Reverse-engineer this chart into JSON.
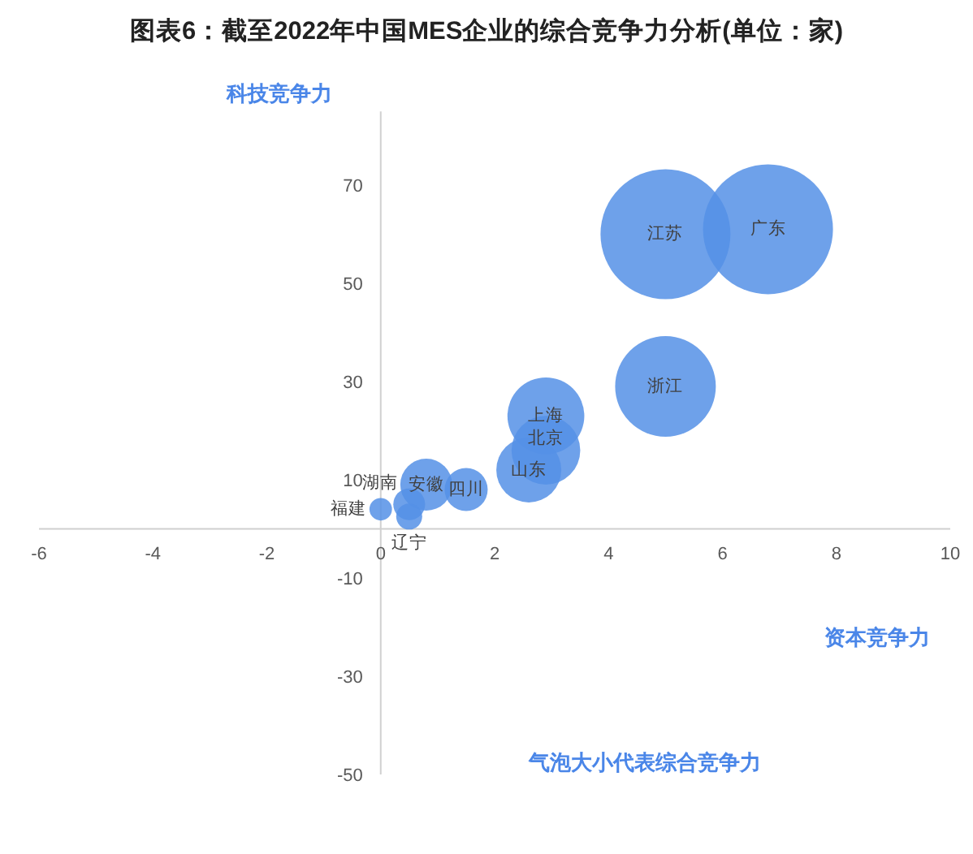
{
  "chart_data": {
    "type": "bubble",
    "title": "图表6：截至2022年中国MES企业的综合竞争力分析(单位：家)",
    "xlabel": "资本竞争力",
    "ylabel": "科技竞争力",
    "annotations": [
      "气泡大小代表综合竞争力"
    ],
    "xlim": [
      -6,
      10
    ],
    "xticks": [
      -6,
      -4,
      -2,
      0,
      2,
      4,
      6,
      8,
      10
    ],
    "ylim": [
      -50,
      85
    ],
    "yticks": [
      -50,
      -30,
      -10,
      10,
      30,
      50,
      70
    ],
    "series": [
      {
        "name": "江苏",
        "color": "#5591e6",
        "x": [
          5.0
        ],
        "values": [
          60
        ],
        "sizes": [
          1
        ]
      },
      {
        "name": "广东",
        "color": "#5591e6",
        "x": [
          6.8
        ],
        "values": [
          61
        ],
        "sizes": [
          1
        ]
      },
      {
        "name": "浙江",
        "color": "#5591e6",
        "x": [
          5.0
        ],
        "values": [
          29
        ],
        "sizes": [
          0.6
        ]
      },
      {
        "name": "上海",
        "color": "#5591e6",
        "x": [
          2.9
        ],
        "values": [
          23
        ],
        "sizes": [
          0.35
        ]
      },
      {
        "name": "北京",
        "color": "#5591e6",
        "x": [
          2.9
        ],
        "values": [
          16
        ],
        "sizes": [
          0.28
        ]
      },
      {
        "name": "山东",
        "color": "#5591e6",
        "x": [
          2.6
        ],
        "values": [
          12
        ],
        "sizes": [
          0.25
        ]
      },
      {
        "name": "安徽",
        "color": "#5591e6",
        "x": [
          0.8
        ],
        "values": [
          9
        ],
        "sizes": [
          0.16
        ]
      },
      {
        "name": "四川",
        "color": "#5591e6",
        "x": [
          1.5
        ],
        "values": [
          8
        ],
        "sizes": [
          0.11
        ]
      },
      {
        "name": "湖南",
        "color": "#5591e6",
        "x": [
          0.5
        ],
        "values": [
          5
        ],
        "sizes": [
          0.06
        ]
      },
      {
        "name": "辽宁",
        "color": "#5591e6",
        "x": [
          0.5
        ],
        "values": [
          2.5
        ],
        "sizes": [
          0.04
        ]
      },
      {
        "name": "福建",
        "color": "#5591e6",
        "x": [
          0
        ],
        "values": [
          4
        ],
        "sizes": [
          0.03
        ]
      }
    ]
  }
}
